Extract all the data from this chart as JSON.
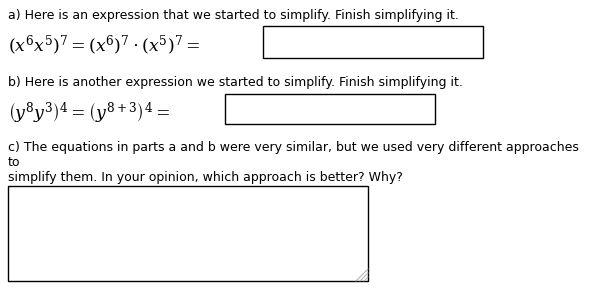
{
  "bg_color": "#ffffff",
  "text_color": "#000000",
  "box_color": "#ffffff",
  "box_edge_color": "#000000",
  "part_a_label": "a) Here is an expression that we started to simplify. Finish simplifying it.",
  "part_b_label": "b) Here is another expression we started to simplify. Finish simplifying it.",
  "part_c_label": "c) The equations in parts a and b were very similar, but we used very different approaches to\nsimplify them. In your opinion, which approach is better? Why?",
  "font_size_label": 9.0,
  "font_size_math": 12.5
}
